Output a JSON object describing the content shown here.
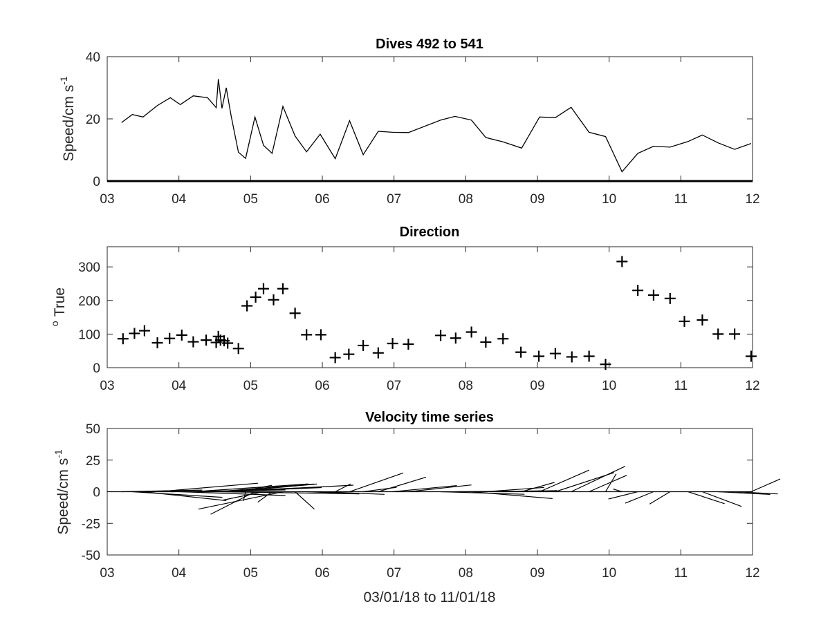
{
  "chart_data": [
    {
      "type": "line",
      "title": "Dives 492 to 541",
      "ylabel": "Speed/cm s",
      "ylabel_sup": "-1",
      "xlim": [
        3,
        12
      ],
      "ylim": [
        0,
        40
      ],
      "xticks": [
        "03",
        "04",
        "05",
        "06",
        "07",
        "08",
        "09",
        "10",
        "11",
        "12"
      ],
      "yticks": [
        "0",
        "20",
        "40"
      ],
      "series": [
        {
          "x": [
            3.2,
            3.35,
            3.5,
            3.7,
            3.88,
            4.02,
            4.2,
            4.4,
            4.52,
            4.55,
            4.6,
            4.66,
            4.73,
            4.83,
            4.93,
            5.06,
            5.18,
            5.3,
            5.45,
            5.62,
            5.78,
            5.97,
            6.18,
            6.38,
            6.57,
            6.78,
            6.98,
            7.2,
            7.65,
            7.85,
            8.08,
            8.28,
            8.52,
            8.78,
            9.03,
            9.25,
            9.47,
            9.72,
            9.95,
            10.18,
            10.4,
            10.62,
            10.85,
            11.1,
            11.3,
            11.52,
            11.75,
            11.98
          ],
          "y": [
            18.8,
            21.4,
            20.6,
            24.3,
            26.8,
            24.6,
            27.4,
            26.8,
            23.6,
            32.8,
            23.4,
            30.0,
            20.8,
            9.3,
            7.3,
            20.6,
            11.5,
            8.9,
            24.0,
            14.5,
            9.4,
            15.1,
            7.2,
            19.4,
            8.5,
            16.0,
            15.7,
            15.6,
            19.6,
            20.8,
            19.6,
            14.0,
            12.6,
            10.6,
            20.6,
            20.4,
            23.7,
            15.7,
            14.3,
            3.0,
            8.9,
            11.2,
            10.9,
            12.7,
            14.8,
            12.3,
            10.2,
            12.1
          ]
        }
      ],
      "grid": false
    },
    {
      "type": "scatter",
      "title": "Direction",
      "ylabel": "True",
      "ylabel_pre": "o",
      "xlim": [
        3,
        12
      ],
      "ylim": [
        0,
        360
      ],
      "xticks": [
        "03",
        "04",
        "05",
        "06",
        "07",
        "08",
        "09",
        "10",
        "11",
        "12"
      ],
      "yticks": [
        "0",
        "100",
        "200",
        "300"
      ],
      "series": [
        {
          "x": [
            3.22,
            3.38,
            3.52,
            3.7,
            3.87,
            4.04,
            4.2,
            4.38,
            4.52,
            4.55,
            4.58,
            4.63,
            4.68,
            4.83,
            4.95,
            5.07,
            5.18,
            5.32,
            5.45,
            5.62,
            5.78,
            5.98,
            6.18,
            6.37,
            6.57,
            6.78,
            6.98,
            7.2,
            7.65,
            7.86,
            8.08,
            8.28,
            8.52,
            8.77,
            9.02,
            9.25,
            9.48,
            9.72,
            9.95,
            10.18,
            10.4,
            10.62,
            10.85,
            11.05,
            11.3,
            11.52,
            11.75,
            11.98
          ],
          "y": [
            86,
            102,
            110,
            74,
            87,
            97,
            77,
            82,
            75,
            93,
            82,
            80,
            73,
            57,
            184,
            210,
            235,
            202,
            235,
            162,
            98,
            98,
            30,
            40,
            66,
            44,
            72,
            70,
            96,
            88,
            106,
            76,
            86,
            46,
            34,
            42,
            32,
            34,
            10,
            316,
            230,
            216,
            206,
            138,
            142,
            100,
            100,
            34
          ]
        }
      ],
      "grid": false
    },
    {
      "type": "line",
      "subtype": "feather",
      "title": "Velocity time series",
      "xlabel": "03/01/18 to 11/01/18",
      "ylabel": "Speed/cm s",
      "ylabel_sup": "-1",
      "xlim": [
        3,
        12
      ],
      "ylim": [
        -50,
        50
      ],
      "xticks": [
        "03",
        "04",
        "05",
        "06",
        "07",
        "08",
        "09",
        "10",
        "11",
        "12"
      ],
      "yticks": [
        "-50",
        "-25",
        "0",
        "25",
        "50"
      ],
      "grid": false
    }
  ]
}
